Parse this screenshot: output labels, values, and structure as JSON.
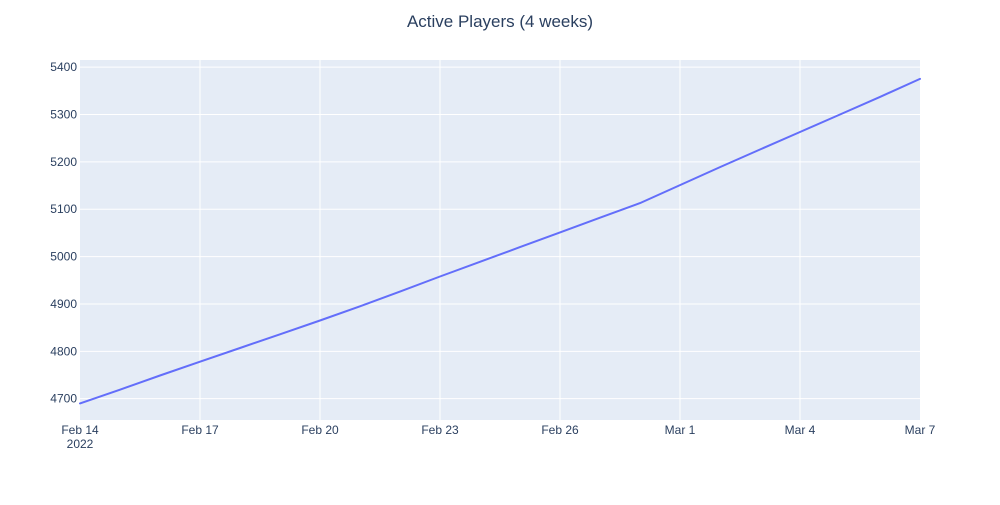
{
  "chart_data": {
    "type": "line",
    "title": "Active Players (4 weeks)",
    "xlabel": "",
    "ylabel": "",
    "x_axis_year_label": "2022",
    "x_range": [
      "2022-02-14",
      "2022-03-07"
    ],
    "ylim": [
      4655,
      5415
    ],
    "y_ticks": [
      4700,
      4800,
      4900,
      5000,
      5100,
      5200,
      5300,
      5400
    ],
    "x_ticks": [
      {
        "date": "2022-02-14",
        "label": "Feb 14"
      },
      {
        "date": "2022-02-17",
        "label": "Feb 17"
      },
      {
        "date": "2022-02-20",
        "label": "Feb 20"
      },
      {
        "date": "2022-02-23",
        "label": "Feb 23"
      },
      {
        "date": "2022-02-26",
        "label": "Feb 26"
      },
      {
        "date": "2022-03-01",
        "label": "Mar 1"
      },
      {
        "date": "2022-03-04",
        "label": "Mar 4"
      },
      {
        "date": "2022-03-07",
        "label": "Mar 7"
      }
    ],
    "grid": true,
    "series": [
      {
        "color": "#636efa",
        "x": [
          "2022-02-14",
          "2022-02-15",
          "2022-02-16",
          "2022-02-17",
          "2022-02-18",
          "2022-02-19",
          "2022-02-20",
          "2022-02-21",
          "2022-02-22",
          "2022-02-23",
          "2022-02-24",
          "2022-02-25",
          "2022-02-26",
          "2022-02-27",
          "2022-02-28",
          "2022-03-01",
          "2022-03-02",
          "2022-03-03",
          "2022-03-04",
          "2022-03-05",
          "2022-03-06",
          "2022-03-07"
        ],
        "y": [
          4690,
          4719,
          4749,
          4778,
          4807,
          4836,
          4865,
          4895,
          4926,
          4958,
          4989,
          5020,
          5051,
          5082,
          5113,
          5151,
          5189,
          5226,
          5263,
          5300,
          5337,
          5375
        ]
      }
    ]
  },
  "colors": {
    "plot_bg": "#e5ecf6",
    "grid": "#ffffff",
    "text": "#2a3f5f"
  }
}
